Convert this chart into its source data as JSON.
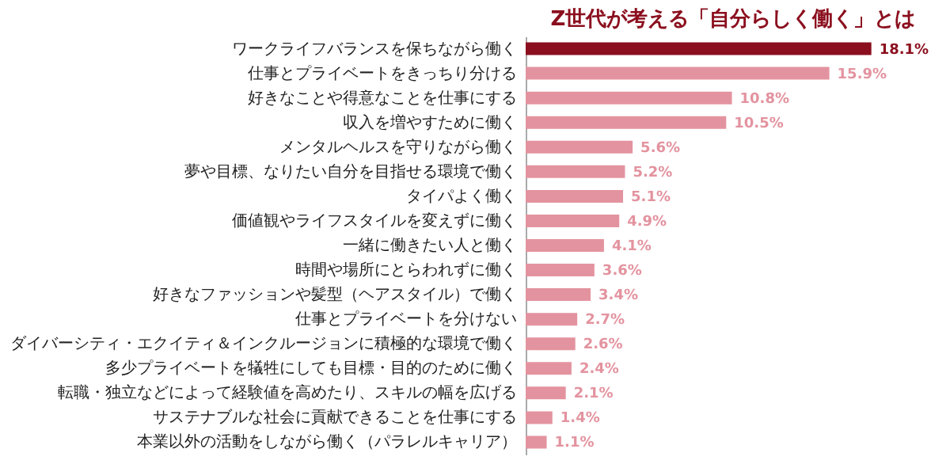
{
  "chart_data": {
    "type": "bar",
    "orientation": "horizontal",
    "title": "Z世代が考える「自分らしく働く」とは",
    "categories": [
      "ワークライフバランスを保ちながら働く",
      "仕事とプライベートをきっちり分ける",
      "好きなことや得意なことを仕事にする",
      "収入を増やすために働く",
      "メンタルヘルスを守りながら働く",
      "夢や目標、なりたい自分を目指せる環境で働く",
      "タイパよく働く",
      "価値観やライフスタイルを変えずに働く",
      "一緒に働きたい人と働く",
      "時間や場所にとらわれずに働く",
      "好きなファッションや髪型（ヘアスタイル）で働く",
      "仕事とプライベートを分けない",
      "ダイバーシティ・エクイティ＆インクルージョンに積極的な環境で働く",
      "多少プライベートを犠牲にしても目標・目的のために働く",
      "転職・独立などによって経験値を高めたり、スキルの幅を広げる",
      "サステナブルな社会に貢献できることを仕事にする",
      "本業以外の活動をしながら働く（パラレルキャリア）"
    ],
    "values": [
      18.1,
      15.9,
      10.8,
      10.5,
      5.6,
      5.2,
      5.1,
      4.9,
      4.1,
      3.6,
      3.4,
      2.7,
      2.6,
      2.4,
      2.1,
      1.4,
      1.1
    ],
    "value_labels": [
      "18.1%",
      "15.9%",
      "10.8%",
      "10.5%",
      "5.6%",
      "5.2%",
      "5.1%",
      "4.9%",
      "4.1%",
      "3.6%",
      "3.4%",
      "2.7%",
      "2.6%",
      "2.4%",
      "2.1%",
      "1.4%",
      "1.1%"
    ],
    "colors": [
      "#8b0f1e",
      "#e3939f",
      "#e3939f",
      "#e3939f",
      "#e3939f",
      "#e3939f",
      "#e3939f",
      "#e3939f",
      "#e3939f",
      "#e3939f",
      "#e3939f",
      "#e3939f",
      "#e3939f",
      "#e3939f",
      "#e3939f",
      "#e3939f",
      "#e3939f"
    ]
  }
}
